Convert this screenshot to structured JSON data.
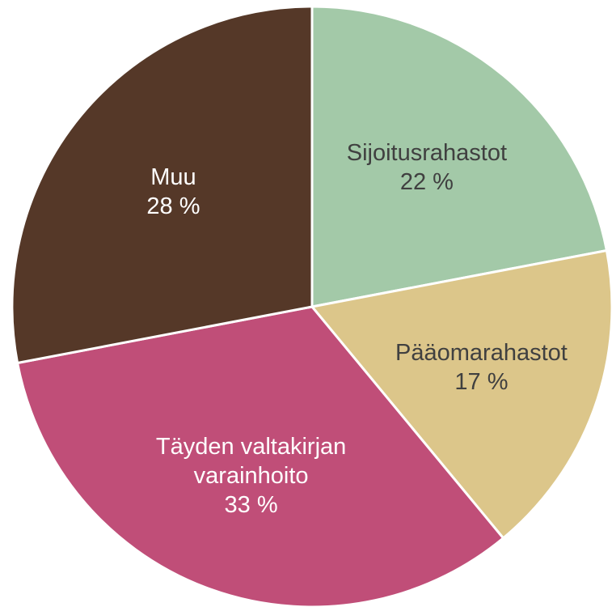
{
  "chart_data": {
    "type": "pie",
    "categories": [
      "Sijoitusrahastot",
      "Pääomarahastot",
      "Täyden valtakirjan varainhoito",
      "Muu"
    ],
    "values": [
      22,
      17,
      33,
      28
    ],
    "value_labels": [
      "22 %",
      "17 %",
      "33 %",
      "28 %"
    ],
    "colors": [
      "#a3c9a8",
      "#dcc68a",
      "#c04e78",
      "#553828"
    ]
  }
}
